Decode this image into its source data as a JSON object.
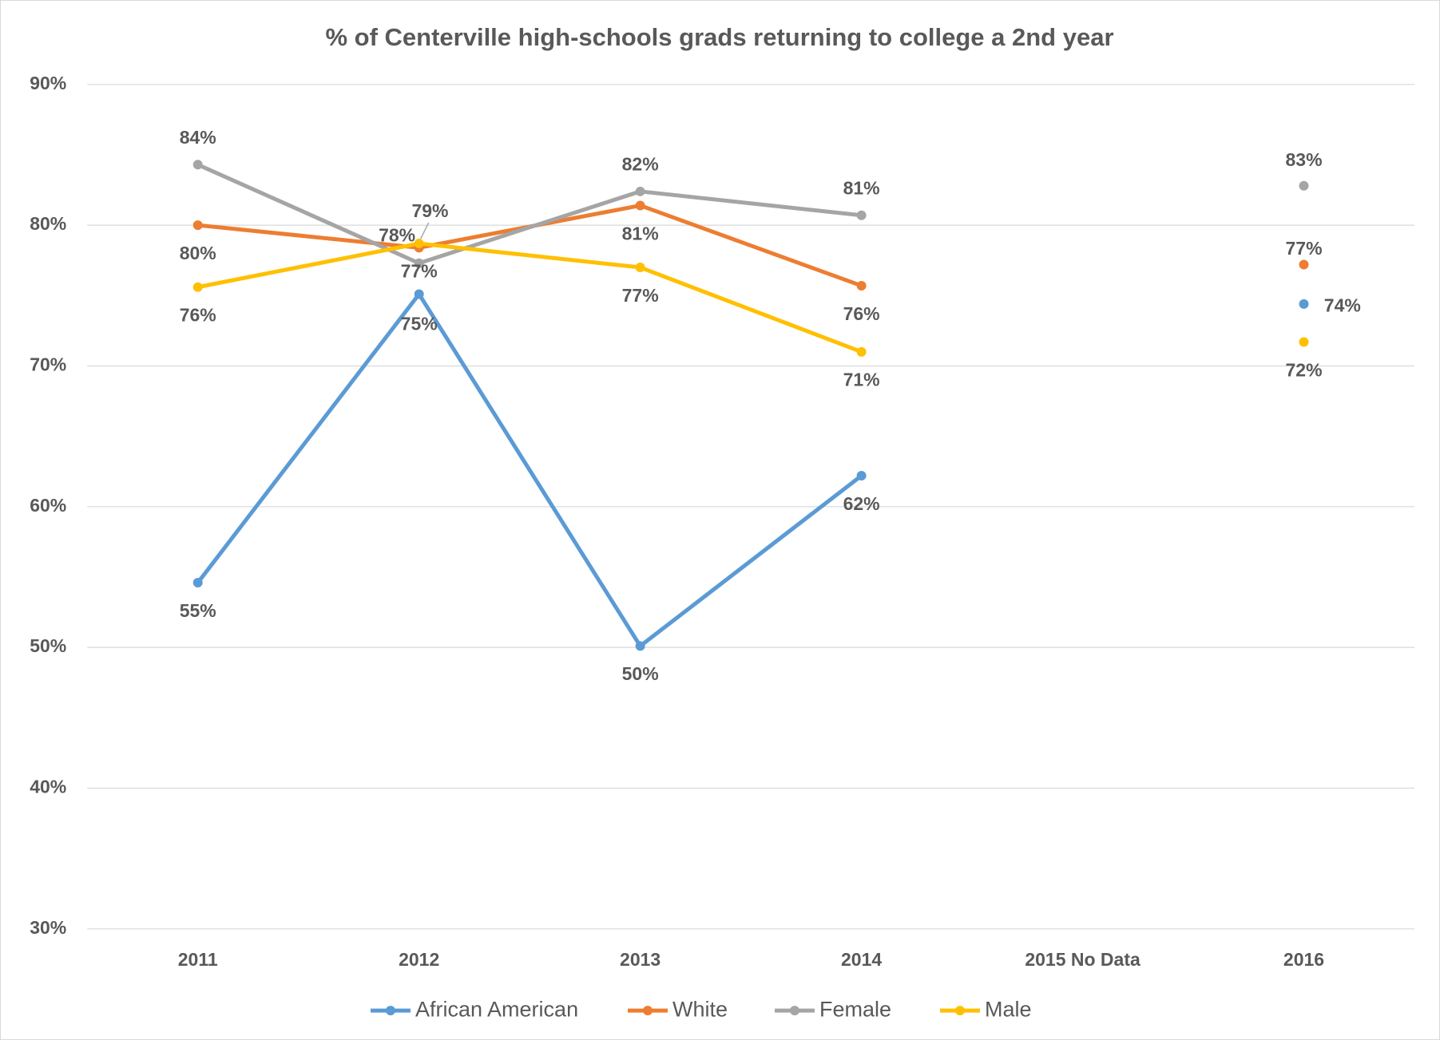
{
  "chart_data": {
    "type": "line",
    "title": "% of Centerville high-schools grads returning to college a 2nd year",
    "categories": [
      "2011",
      "2012",
      "2013",
      "2014",
      "2015 No Data",
      "2016"
    ],
    "series": [
      {
        "name": "African American",
        "color": "#5b9bd5",
        "values": [
          54.6,
          75.1,
          50.1,
          62.2,
          null,
          74.4
        ],
        "value_labels": [
          "55%",
          "75%",
          "50%",
          "62%",
          null,
          "74%"
        ]
      },
      {
        "name": "White",
        "color": "#ed7d31",
        "values": [
          80.0,
          78.4,
          81.4,
          75.7,
          null,
          77.2
        ],
        "value_labels": [
          "80%",
          "78%",
          "81%",
          "76%",
          null,
          "77%"
        ]
      },
      {
        "name": "Female",
        "color": "#a5a5a5",
        "values": [
          84.3,
          77.3,
          82.4,
          80.7,
          null,
          82.8
        ],
        "value_labels": [
          "84%",
          "77%",
          "82%",
          "81%",
          null,
          "83%"
        ]
      },
      {
        "name": "Male",
        "color": "#ffc000",
        "values": [
          75.6,
          78.7,
          77.0,
          71.0,
          null,
          71.7
        ],
        "value_labels": [
          "76%",
          "79%",
          "77%",
          "71%",
          null,
          "72%"
        ]
      }
    ],
    "ylim": [
      30,
      90
    ],
    "yticks": [
      {
        "value": 30,
        "label": "30%"
      },
      {
        "value": 40,
        "label": "40%"
      },
      {
        "value": 50,
        "label": "50%"
      },
      {
        "value": 60,
        "label": "60%"
      },
      {
        "value": 70,
        "label": "70%"
      },
      {
        "value": 80,
        "label": "80%"
      },
      {
        "value": 90,
        "label": "90%"
      }
    ],
    "grid": true,
    "legend": "bottom"
  }
}
